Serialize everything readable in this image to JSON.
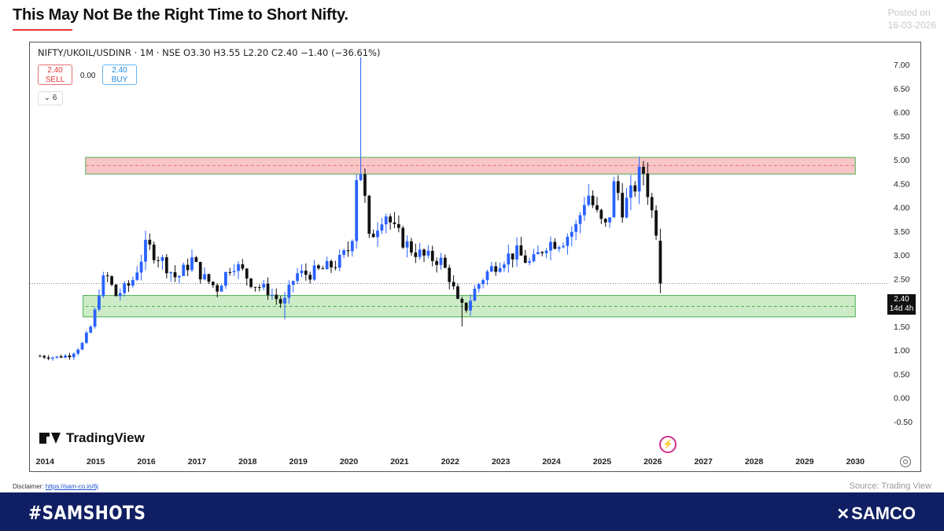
{
  "header": {
    "title": "This May Not Be the Right Time to Short Nifty.",
    "posted_label": "Posted on",
    "posted_date": "16-03-2026"
  },
  "chart_header": {
    "symbol_line": "NIFTY/UKOIL/USDINR · 1M · NSE  O3.30  H3.55  L2.20  C2.40  −1.40 (−36.61%)",
    "sell_value": "2.40",
    "sell_label": "SELL",
    "spread": "0.00",
    "buy_value": "2.40",
    "buy_label": "BUY",
    "indicator_count": "6"
  },
  "price_tag": {
    "value": "2.40",
    "countdown": "14d 4h"
  },
  "branding": {
    "tradingview": "TradingView",
    "hashtag": "#SAMSHOTS",
    "brand": "SAMCO"
  },
  "footer": {
    "disclaimer_label": "Disclaimer:",
    "disclaimer_link": "https://sam-co.in/6j",
    "source": "Source: Trading View"
  },
  "colors": {
    "bullish": "#2962ff",
    "bearish": "#111111",
    "resistance_zone": "#f8c6c6",
    "support_zone": "#cdebc6",
    "zone_border": "#4caf50",
    "bottom_bar": "#101f63"
  },
  "icons": [
    "settings-icon",
    "bolt-icon",
    "tradingview-logo-icon",
    "samco-logo-icon"
  ],
  "chart_data": {
    "type": "candlestick",
    "ylim": [
      -0.5,
      7.0
    ],
    "y_ticks": [
      "7.00",
      "6.50",
      "6.00",
      "5.50",
      "5.00",
      "4.50",
      "4.00",
      "3.50",
      "3.00",
      "2.50",
      "2.00",
      "1.50",
      "1.00",
      "0.50",
      "0.00",
      "-0.50"
    ],
    "x_ticks": [
      "2014",
      "2015",
      "2016",
      "2017",
      "2018",
      "2019",
      "2020",
      "2021",
      "2022",
      "2023",
      "2024",
      "2025",
      "2026",
      "2027",
      "2028",
      "2029",
      "2030"
    ],
    "x_range": [
      2014.0,
      2030.25
    ],
    "current_price": 2.4,
    "zones": [
      {
        "name": "resistance",
        "low": 4.7,
        "high": 5.05,
        "x_start": 2014.8,
        "x_end": 2030.0
      },
      {
        "name": "support",
        "low": 1.7,
        "high": 2.15,
        "x_start": 2014.75,
        "x_end": 2030.0
      }
    ],
    "support_dashed_level": 1.92,
    "resistance_dashed_level": 4.88,
    "anchors": [
      [
        2013.9,
        0.88
      ],
      [
        2014.2,
        0.85
      ],
      [
        2014.5,
        0.9
      ],
      [
        2014.75,
        1.15
      ],
      [
        2014.95,
        1.6
      ],
      [
        2015.05,
        2.2
      ],
      [
        2015.2,
        2.6
      ],
      [
        2015.4,
        2.15
      ],
      [
        2015.7,
        2.4
      ],
      [
        2016.0,
        3.2
      ],
      [
        2016.3,
        2.9
      ],
      [
        2016.6,
        2.5
      ],
      [
        2016.9,
        2.9
      ],
      [
        2017.1,
        2.55
      ],
      [
        2017.4,
        2.3
      ],
      [
        2017.7,
        2.85
      ],
      [
        2017.9,
        2.65
      ],
      [
        2018.1,
        2.4
      ],
      [
        2018.4,
        2.25
      ],
      [
        2018.7,
        1.95
      ],
      [
        2018.95,
        2.6
      ],
      [
        2019.2,
        2.6
      ],
      [
        2019.5,
        2.7
      ],
      [
        2019.8,
        2.85
      ],
      [
        2020.05,
        3.2
      ],
      [
        2020.15,
        4.7
      ],
      [
        2020.25,
        4.8
      ],
      [
        2020.4,
        3.3
      ],
      [
        2020.7,
        3.95
      ],
      [
        2020.9,
        3.5
      ],
      [
        2021.2,
        3.15
      ],
      [
        2021.5,
        2.95
      ],
      [
        2021.8,
        2.9
      ],
      [
        2022.0,
        2.5
      ],
      [
        2022.15,
        2.0
      ],
      [
        2022.3,
        1.85
      ],
      [
        2022.5,
        2.3
      ],
      [
        2022.7,
        2.6
      ],
      [
        2023.0,
        2.9
      ],
      [
        2023.3,
        3.05
      ],
      [
        2023.6,
        2.8
      ],
      [
        2023.9,
        3.25
      ],
      [
        2024.2,
        3.3
      ],
      [
        2024.5,
        3.6
      ],
      [
        2024.7,
        4.35
      ],
      [
        2024.95,
        3.7
      ],
      [
        2025.1,
        3.55
      ],
      [
        2025.25,
        4.55
      ],
      [
        2025.4,
        4.0
      ],
      [
        2025.55,
        4.2
      ],
      [
        2025.7,
        4.6
      ],
      [
        2025.85,
        4.8
      ],
      [
        2025.95,
        3.95
      ],
      [
        2026.05,
        3.8
      ],
      [
        2026.15,
        2.4
      ]
    ],
    "spikes": [
      {
        "x": 2020.2,
        "high": 7.15
      },
      {
        "x": 2022.2,
        "low": 1.5
      },
      {
        "x": 2018.75,
        "low": 1.65
      }
    ]
  }
}
